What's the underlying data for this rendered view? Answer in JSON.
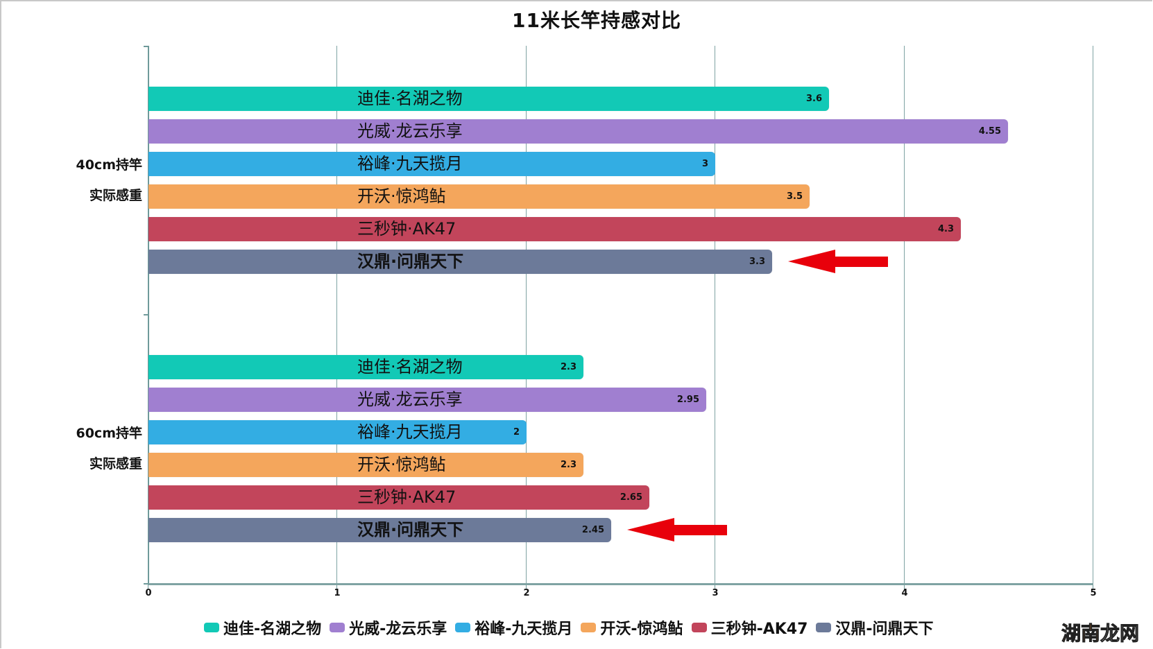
{
  "title": "11米长竿持感对比",
  "chart_data": {
    "type": "bar",
    "orientation": "horizontal",
    "title": "11米长竿持感对比",
    "xlabel": "",
    "ylabel": "",
    "xlim": [
      0,
      5
    ],
    "x_ticks": [
      "0",
      "1",
      "2",
      "3",
      "4",
      "5"
    ],
    "grid": true,
    "legend_position": "bottom",
    "categories": [
      "40cm持竿实际感重",
      "60cm持竿实际感重"
    ],
    "category_lines": [
      [
        "40cm持竿",
        "实际感重"
      ],
      [
        "60cm持竿",
        "实际感重"
      ]
    ],
    "series": [
      {
        "name": "迪佳-名湖之物",
        "bar_label": "迪佳·名湖之物",
        "color": "#12c9b6",
        "values": [
          3.6,
          2.3
        ],
        "value_labels": [
          "3.6",
          "2.3"
        ],
        "bold": false
      },
      {
        "name": "光威-龙云乐享",
        "bar_label": "光威·龙云乐享",
        "color": "#a07fd0",
        "values": [
          4.55,
          2.95
        ],
        "value_labels": [
          "4.55",
          "2.95"
        ],
        "bold": false
      },
      {
        "name": "裕峰-九天揽月",
        "bar_label": "裕峰·九天揽月",
        "color": "#33ade3",
        "values": [
          3,
          2
        ],
        "value_labels": [
          "3",
          "2"
        ],
        "bold": false
      },
      {
        "name": "开沃-惊鸿鲇",
        "bar_label": "开沃·惊鸿鲇",
        "color": "#f4a65c",
        "values": [
          3.5,
          2.3
        ],
        "value_labels": [
          "3.5",
          "2.3"
        ],
        "bold": false
      },
      {
        "name": "三秒钟-AK47",
        "bar_label": "三秒钟·AK47",
        "color": "#c2455b",
        "values": [
          4.3,
          2.65
        ],
        "value_labels": [
          "4.3",
          "2.65"
        ],
        "bold": false
      },
      {
        "name": "汉鼎-问鼎天下",
        "bar_label": "汉鼎·问鼎天下",
        "color": "#6c7a99",
        "values": [
          3.3,
          2.45
        ],
        "value_labels": [
          "3.3",
          "2.45"
        ],
        "bold": true
      }
    ],
    "annotations": [
      {
        "type": "arrow",
        "color": "#e8000b",
        "points_to": "汉鼎·问鼎天下 (40cm)"
      },
      {
        "type": "arrow",
        "color": "#e8000b",
        "points_to": "汉鼎·问鼎天下 (60cm)"
      }
    ]
  },
  "watermark": {
    "part1": "湖南",
    "part2": "龙网"
  }
}
